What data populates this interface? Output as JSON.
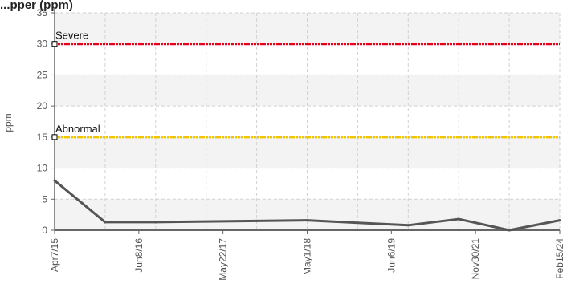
{
  "chart_data": {
    "type": "line",
    "title": "...pper (ppm)",
    "ylabel": "ppm",
    "xlabel": "",
    "ylim": [
      0,
      35
    ],
    "yticks": [
      0,
      5,
      10,
      15,
      20,
      25,
      30,
      35
    ],
    "x_labels": [
      "Apr7/15",
      "Jun8/16",
      "May22/17",
      "May1/18",
      "Jun6/19",
      "Nov30/21",
      "Feb15/24"
    ],
    "grid": true,
    "series": [
      {
        "values": [
          8.0,
          1.3,
          1.3,
          1.4,
          1.5,
          1.6,
          1.2,
          0.8,
          1.8,
          0.0,
          1.6
        ],
        "color": "#555555"
      }
    ],
    "thresholds": [
      {
        "label": "Severe",
        "value": 30,
        "color": "#e8001c"
      },
      {
        "label": "Abnormal",
        "value": 15,
        "color": "#f2c500"
      }
    ],
    "colors": {
      "band": "#f3f3f3",
      "grid": "#d2d2d2",
      "axis": "#666666",
      "text": "#555555"
    }
  }
}
